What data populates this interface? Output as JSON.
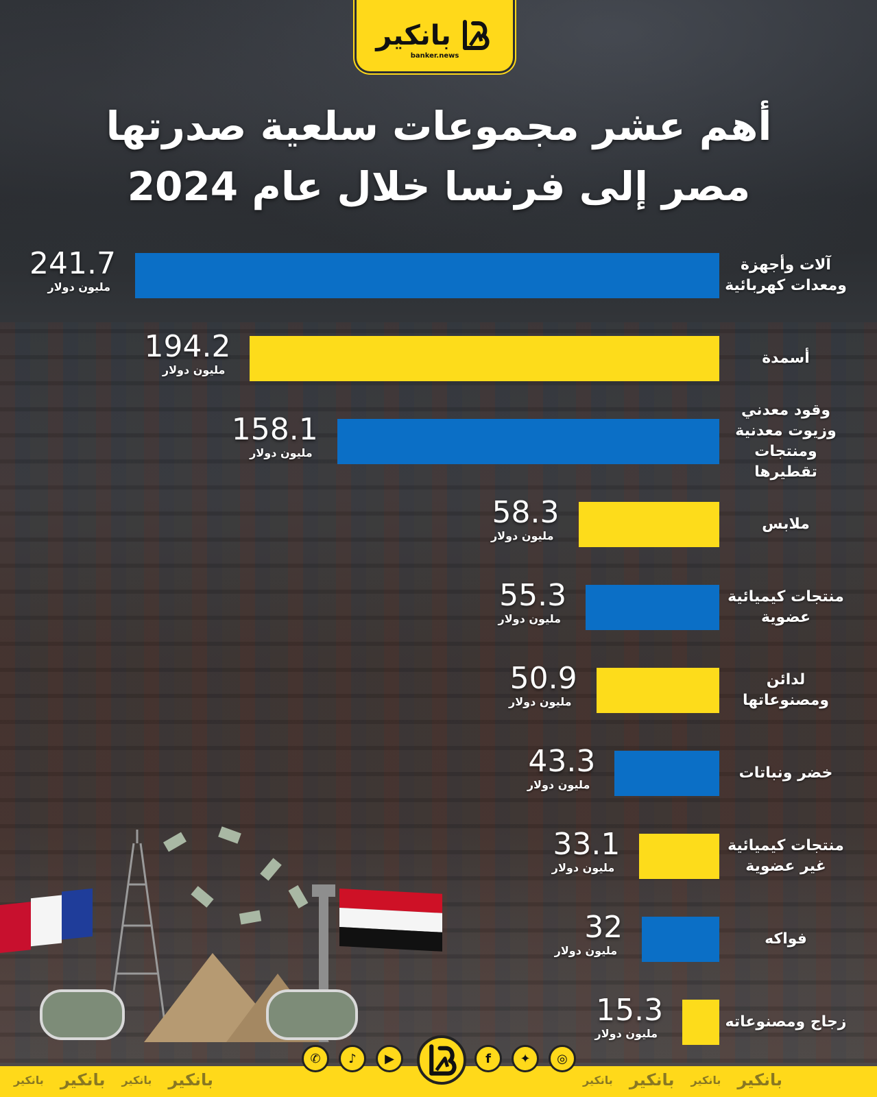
{
  "brand": {
    "name": "بانكير",
    "domain": "banker.news"
  },
  "title_line1": "أهم عشر مجموعات سلعية صدرتها",
  "title_line2": "مصر إلى فرنسا خلال عام 2024",
  "colors": {
    "blue": "#0b6fc6",
    "yellow": "#fddc1b",
    "brand_yellow": "#ffd91a"
  },
  "chart_data": {
    "type": "bar",
    "orientation": "horizontal",
    "title": "أهم عشر مجموعات سلعية صدرتها مصر إلى فرنسا خلال عام 2024",
    "unit": "مليون دولار",
    "categories": [
      "آلات وأجهزة ومعدات كهربائية",
      "أسمدة",
      "وقود معدني وزيوت معدنية ومنتجات تقطيرها",
      "ملابس",
      "منتجات كيميائية عضوية",
      "لدائن ومصنوعاتها",
      "خضر ونباتات",
      "منتجات كيميائية غير عضوية",
      "فواكه",
      "زجاج ومصنوعاته"
    ],
    "values": [
      241.7,
      194.2,
      158.1,
      58.3,
      55.3,
      50.9,
      43.3,
      33.1,
      32,
      15.3
    ],
    "value_labels": [
      "241.7",
      "194.2",
      "158.1",
      "58.3",
      "55.3",
      "50.9",
      "43.3",
      "33.1",
      "32",
      "15.3"
    ],
    "bar_colors": [
      "#0b6fc6",
      "#fddc1b",
      "#0b6fc6",
      "#fddc1b",
      "#0b6fc6",
      "#fddc1b",
      "#0b6fc6",
      "#fddc1b",
      "#0b6fc6",
      "#fddc1b"
    ],
    "grid": false,
    "legend": "none"
  },
  "social": [
    "whatsapp-icon",
    "tiktok-icon",
    "youtube-icon",
    "facebook-icon",
    "twitter-icon",
    "instagram-icon"
  ]
}
